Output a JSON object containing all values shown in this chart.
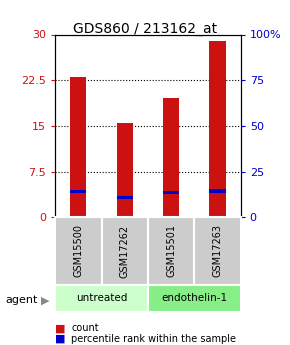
{
  "title": "GDS860 / 213162_at",
  "samples": [
    "GSM15500",
    "GSM17262",
    "GSM15501",
    "GSM17263"
  ],
  "groups": [
    "untreated",
    "untreated",
    "endothelin-1",
    "endothelin-1"
  ],
  "counts": [
    23.0,
    15.5,
    19.5,
    29.0
  ],
  "percentile_ranks": [
    14.0,
    11.0,
    13.5,
    14.5
  ],
  "ylim_left": [
    0,
    30
  ],
  "ylim_right": [
    0,
    100
  ],
  "yticks_left": [
    0,
    7.5,
    15,
    22.5,
    30
  ],
  "ytick_labels_left": [
    "0",
    "7.5",
    "15",
    "22.5",
    "30"
  ],
  "yticks_right": [
    0,
    25,
    50,
    75,
    100
  ],
  "ytick_labels_right": [
    "0",
    "25",
    "50",
    "75",
    "100%"
  ],
  "bar_color": "#cc1111",
  "dot_color": "#0000cc",
  "untreated_color": "#ccffcc",
  "endothelin_color": "#88ee88",
  "sample_bg_color": "#cccccc",
  "title_fontsize": 10,
  "legend_count_label": "count",
  "legend_percentile_label": "percentile rank within the sample",
  "agent_label": "agent"
}
